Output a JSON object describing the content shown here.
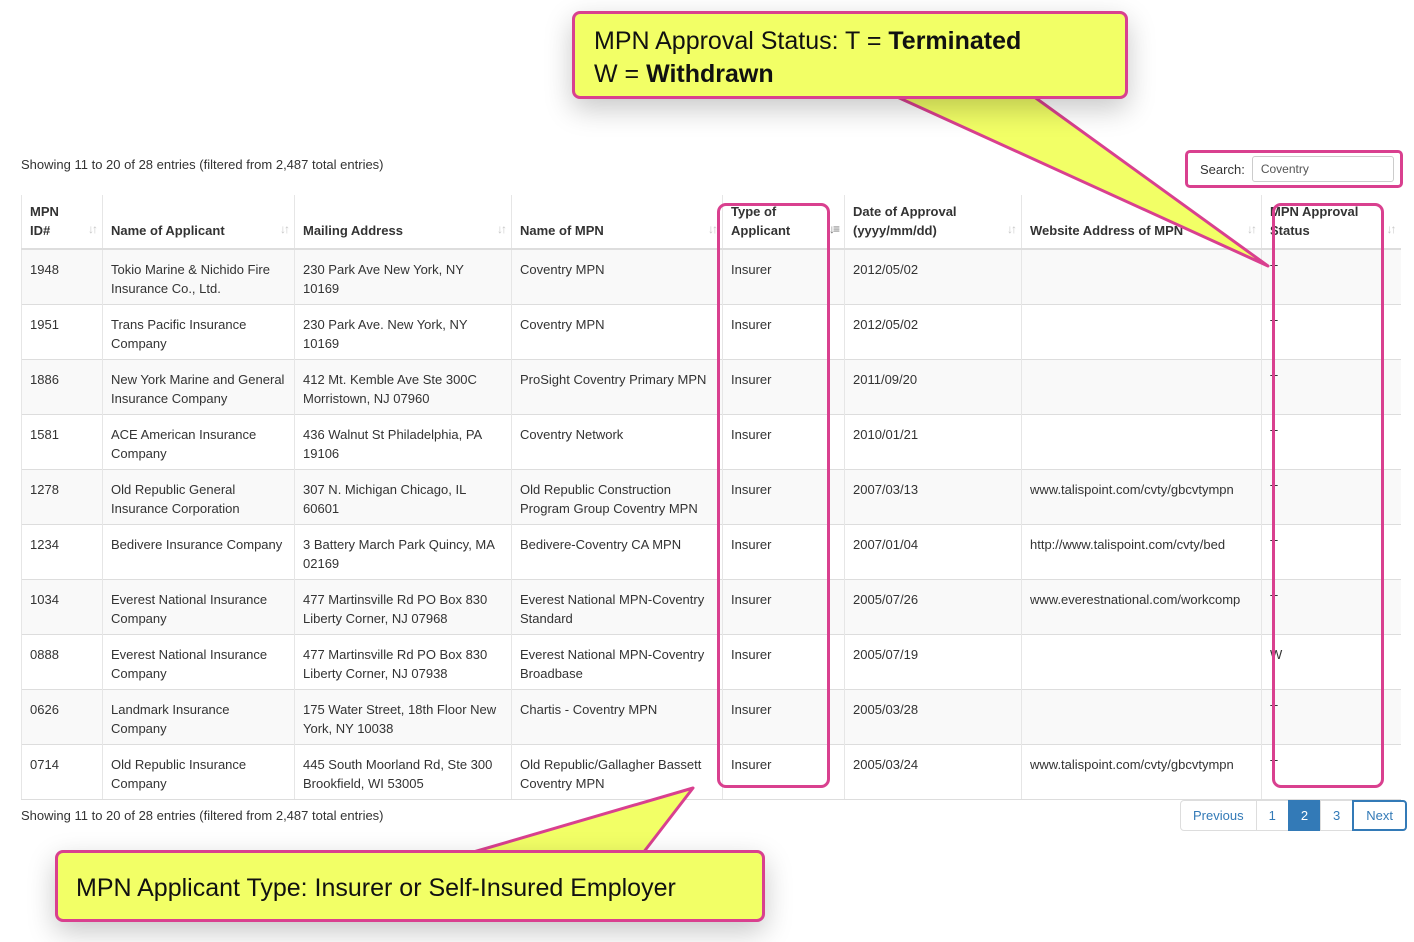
{
  "info_top": "Showing 11 to 20 of 28 entries (filtered from 2,487 total entries)",
  "info_bottom": "Showing 11 to 20 of 28 entries (filtered from 2,487 total entries)",
  "search": {
    "label": "Search:",
    "value": "Coventry"
  },
  "columns": [
    {
      "line1": "MPN",
      "line2": "ID#"
    },
    {
      "line1": "",
      "line2": "Name of Applicant"
    },
    {
      "line1": "",
      "line2": "Mailing Address"
    },
    {
      "line1": "",
      "line2": "Name of MPN"
    },
    {
      "line1": "Type of",
      "line2": "Applicant"
    },
    {
      "line1": "Date of Approval",
      "line2": "(yyyy/mm/dd)"
    },
    {
      "line1": "",
      "line2": "Website Address of MPN"
    },
    {
      "line1": "MPN Approval",
      "line2": "Status"
    }
  ],
  "rows": [
    {
      "id": "1948",
      "name": "Tokio Marine & Nichido Fire Insurance Co., Ltd.",
      "address": "230 Park Ave New York, NY 10169",
      "mpn": "Coventry MPN",
      "type": "Insurer",
      "date": "2012/05/02",
      "website": "",
      "status": "T"
    },
    {
      "id": "1951",
      "name": "Trans Pacific Insurance Company",
      "address": "230 Park Ave. New York, NY 10169",
      "mpn": "Coventry MPN",
      "type": "Insurer",
      "date": "2012/05/02",
      "website": "",
      "status": "T"
    },
    {
      "id": "1886",
      "name": "New York Marine and General Insurance Company",
      "address": "412 Mt. Kemble Ave Ste 300C Morristown, NJ 07960",
      "mpn": "ProSight Coventry Primary MPN",
      "type": "Insurer",
      "date": "2011/09/20",
      "website": "",
      "status": "T"
    },
    {
      "id": "1581",
      "name": "ACE American Insurance Company",
      "address": "436 Walnut St Philadelphia, PA 19106",
      "mpn": "Coventry Network",
      "type": "Insurer",
      "date": "2010/01/21",
      "website": "",
      "status": "T"
    },
    {
      "id": "1278",
      "name": "Old Republic General Insurance Corporation",
      "address": "307 N. Michigan Chicago, IL 60601",
      "mpn": "Old Republic Construction Program Group Coventry MPN",
      "type": "Insurer",
      "date": "2007/03/13",
      "website": "www.talispoint.com/cvty/gbcvtympn",
      "status": "T"
    },
    {
      "id": "1234",
      "name": "Bedivere Insurance Company",
      "address": "3 Battery March Park Quincy, MA 02169",
      "mpn": "Bedivere-Coventry CA MPN",
      "type": "Insurer",
      "date": "2007/01/04",
      "website": "http://www.talispoint.com/cvty/bed",
      "status": "T"
    },
    {
      "id": "1034",
      "name": "Everest National Insurance Company",
      "address": "477 Martinsville Rd PO Box 830 Liberty Corner, NJ 07968",
      "mpn": "Everest National MPN-Coventry Standard",
      "type": "Insurer",
      "date": "2005/07/26",
      "website": "www.everestnational.com/workcomp",
      "status": "T"
    },
    {
      "id": "0888",
      "name": "Everest National Insurance Company",
      "address": "477 Martinsville Rd PO Box 830 Liberty Corner, NJ 07938",
      "mpn": "Everest National MPN-Coventry Broadbase",
      "type": "Insurer",
      "date": "2005/07/19",
      "website": "",
      "status": "W"
    },
    {
      "id": "0626",
      "name": "Landmark Insurance Company",
      "address": "175 Water Street, 18th Floor New York, NY 10038",
      "mpn": "Chartis - Coventry MPN",
      "type": "Insurer",
      "date": "2005/03/28",
      "website": "",
      "status": "T"
    },
    {
      "id": "0714",
      "name": "Old Republic Insurance Company",
      "address": "445 South Moorland Rd, Ste 300 Brookfield, WI 53005",
      "mpn": "Old Republic/Gallagher Bassett Coventry MPN",
      "type": "Insurer",
      "date": "2005/03/24",
      "website": "www.talispoint.com/cvty/gbcvtympn",
      "status": "T"
    }
  ],
  "pagination": {
    "previous": "Previous",
    "pages": [
      "1",
      "2",
      "3"
    ],
    "current": "2",
    "next": "Next"
  },
  "callout_top": {
    "part1": "MPN Approval Status: T = ",
    "part1_bold": "Terminated",
    "part2": "W = ",
    "part2_bold": "Withdrawn"
  },
  "callout_bottom": "MPN Applicant Type: Insurer or Self-Insured Employer",
  "colors": {
    "highlight": "#d9408f",
    "callout_bg": "#f2ff66",
    "link": "#337ab7"
  }
}
